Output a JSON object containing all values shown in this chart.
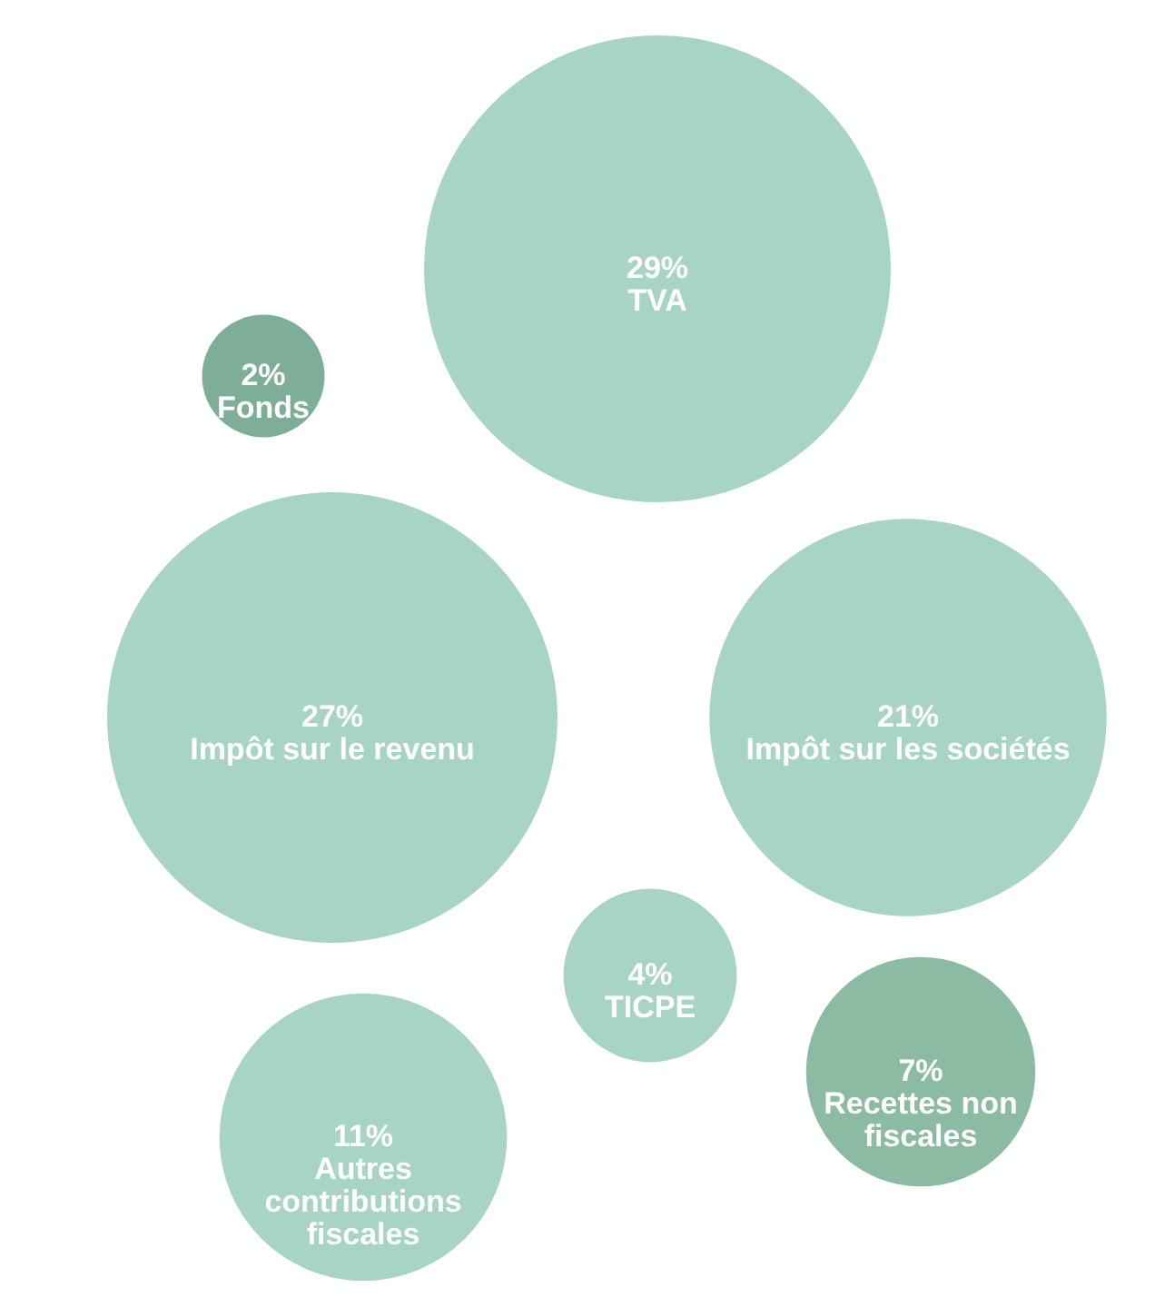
{
  "chart_data": {
    "type": "other",
    "categories": [
      "TVA",
      "Fonds",
      "Impôt sur le revenu",
      "Impôt sur les sociétés",
      "TICPE",
      "Autres contributions fiscales",
      "Recettes non fiscales"
    ],
    "values": [
      29,
      2,
      27,
      21,
      4,
      11,
      7
    ],
    "value_labels": [
      "29%",
      "2%",
      "27%",
      "21%",
      "4%",
      "11%",
      "7%"
    ],
    "colors": [
      "#a8d4c5",
      "#7fae98",
      "#a8d4c5",
      "#a8d4c5",
      "#a8d4c5",
      "#a8d4c5",
      "#8cbba4"
    ]
  }
}
